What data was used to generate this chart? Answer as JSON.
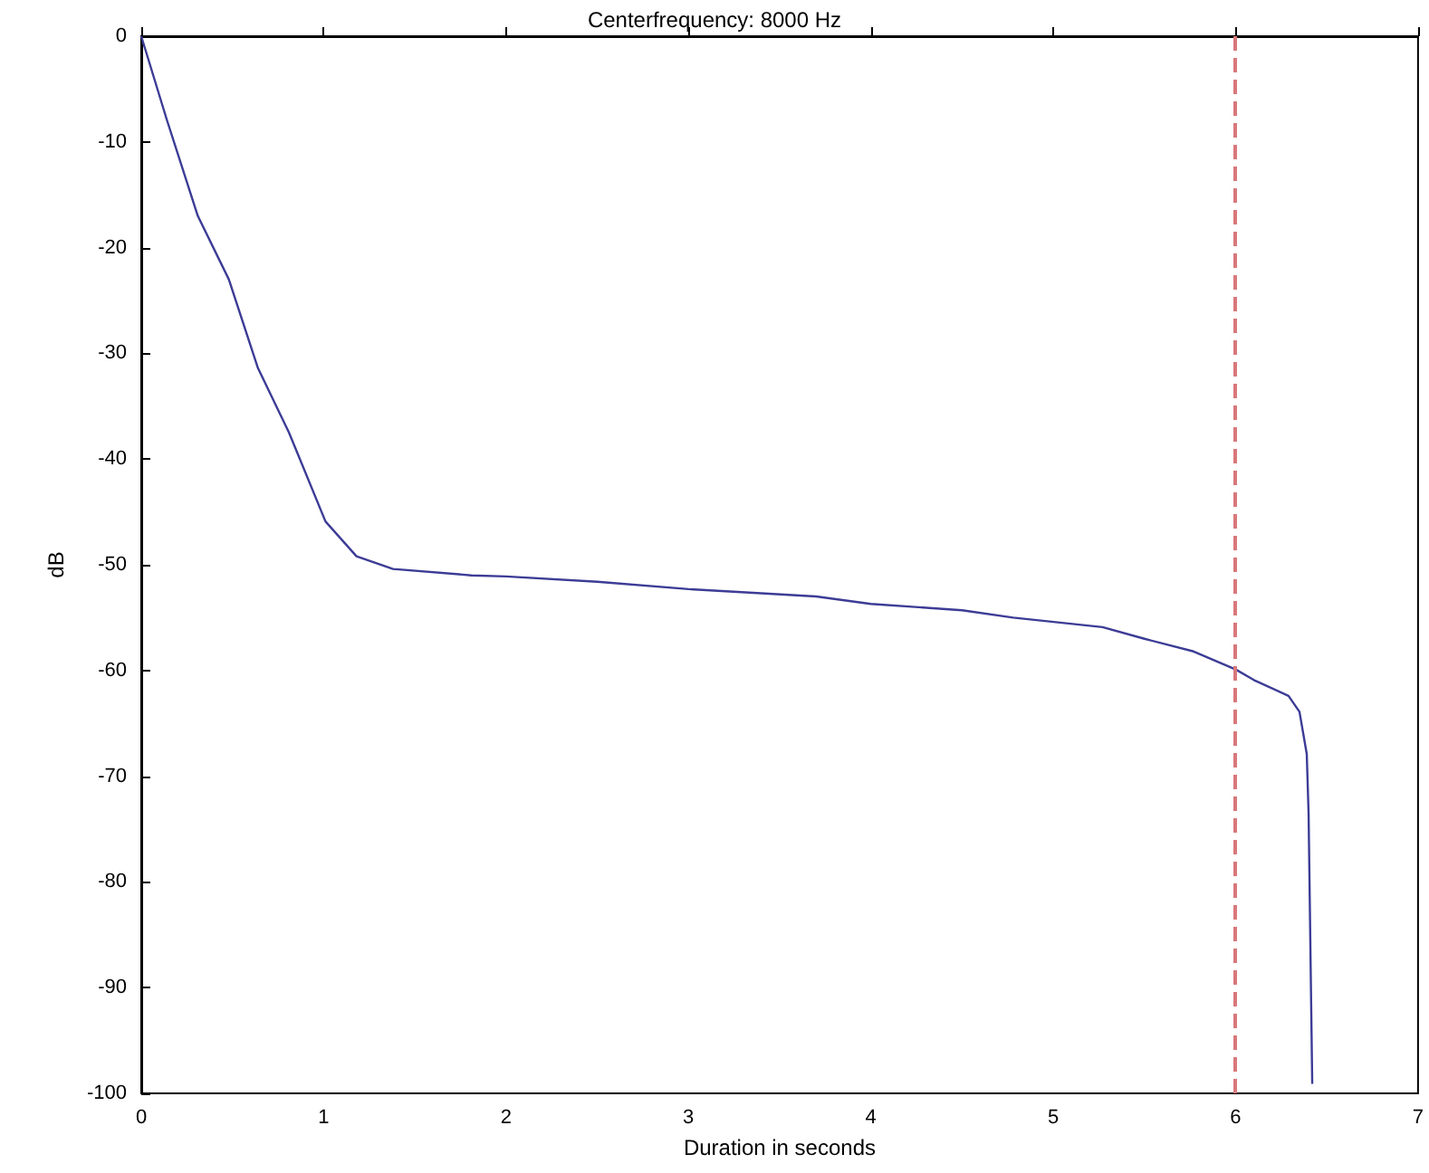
{
  "chart_data": {
    "type": "line",
    "title": "Centerfrequency: 8000 Hz",
    "xlabel": "Duration in seconds",
    "ylabel": "dB",
    "xlim": [
      0,
      7
    ],
    "xticks": [
      0,
      1,
      2,
      3,
      4,
      5,
      6,
      7
    ],
    "ylim": [
      -100,
      0
    ],
    "yticks": [
      -100,
      -90,
      -80,
      -70,
      -60,
      -50,
      -40,
      -30,
      -20,
      -10,
      0
    ],
    "grid": false,
    "marker": "none",
    "line_style": "solid",
    "series": [
      {
        "color": "#3c3c96",
        "x": [
          0,
          0.14,
          0.31,
          0.48,
          0.64,
          0.81,
          1.01,
          1.18,
          1.38,
          1.81,
          2,
          2.5,
          3,
          3.4,
          3.7,
          4,
          4.5,
          4.78,
          5.27,
          5.5,
          5.77,
          6,
          6.1,
          6.29,
          6.35,
          6.39,
          6.4,
          6.42
        ],
        "values": [
          0,
          -7.9,
          -17,
          -23,
          -31.4,
          -37.5,
          -45.9,
          -49.2,
          -50.4,
          -51,
          -51.1,
          -51.6,
          -52.3,
          -52.7,
          -53,
          -53.7,
          -54.3,
          -55,
          -55.9,
          -57,
          -58.2,
          -59.9,
          -60.9,
          -62.4,
          -63.9,
          -67.9,
          -73.5,
          -99.1
        ]
      }
    ],
    "ref_lines": [
      {
        "axis": "x",
        "value": 6,
        "color": "#d9787a",
        "line_style": "dashed"
      }
    ]
  }
}
